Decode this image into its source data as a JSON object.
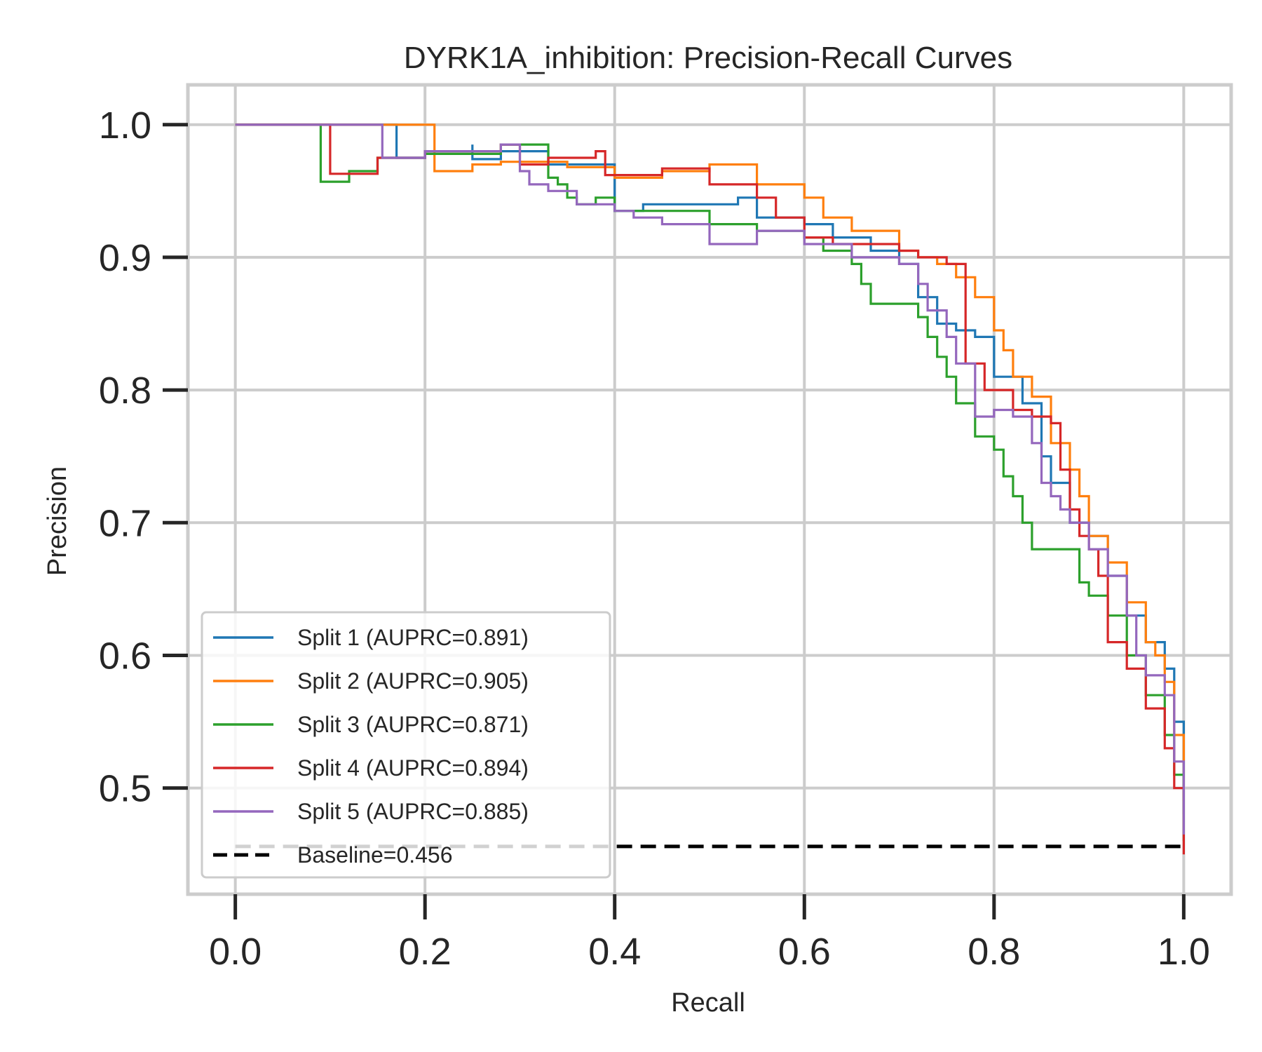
{
  "chart_data": {
    "type": "line",
    "title": "DYRK1A_inhibition: Precision-Recall Curves",
    "xlabel": "Recall",
    "ylabel": "Precision",
    "xlim": [
      -0.05,
      1.05
    ],
    "ylim": [
      0.42,
      1.03
    ],
    "xticks": [
      0.0,
      0.2,
      0.4,
      0.6,
      0.8,
      1.0
    ],
    "xtick_labels": [
      "0.0",
      "0.2",
      "0.4",
      "0.6",
      "0.8",
      "1.0"
    ],
    "yticks": [
      0.5,
      0.6,
      0.7,
      0.8,
      0.9,
      1.0
    ],
    "ytick_labels": [
      "0.5",
      "0.6",
      "0.7",
      "0.8",
      "0.9",
      "1.0"
    ],
    "grid": true,
    "legend_position": "lower-left",
    "series": [
      {
        "name": "Split 1 (AUPRC=0.891)",
        "color": "#1f77b4",
        "x": [
          0.0,
          0.17,
          0.17,
          0.2,
          0.25,
          0.25,
          0.28,
          0.33,
          0.39,
          0.4,
          0.4,
          0.43,
          0.5,
          0.53,
          0.55,
          0.6,
          0.63,
          0.67,
          0.7,
          0.72,
          0.74,
          0.76,
          0.78,
          0.8,
          0.83,
          0.85,
          0.86,
          0.88,
          0.9,
          0.92,
          0.94,
          0.96,
          0.98,
          0.99,
          1.0
        ],
        "y": [
          1.0,
          1.0,
          0.975,
          0.98,
          0.985,
          0.974,
          0.98,
          0.97,
          0.97,
          0.96,
          0.935,
          0.94,
          0.94,
          0.945,
          0.93,
          0.925,
          0.915,
          0.905,
          0.895,
          0.87,
          0.85,
          0.845,
          0.84,
          0.81,
          0.79,
          0.75,
          0.73,
          0.7,
          0.69,
          0.66,
          0.63,
          0.61,
          0.59,
          0.55,
          0.48
        ]
      },
      {
        "name": "Split 2 (AUPRC=0.905)",
        "color": "#ff7f0e",
        "x": [
          0.0,
          0.21,
          0.21,
          0.25,
          0.28,
          0.35,
          0.4,
          0.45,
          0.5,
          0.55,
          0.6,
          0.62,
          0.65,
          0.7,
          0.72,
          0.74,
          0.76,
          0.78,
          0.8,
          0.81,
          0.82,
          0.84,
          0.86,
          0.88,
          0.89,
          0.9,
          0.92,
          0.94,
          0.96,
          0.97,
          0.98,
          0.99,
          1.0
        ],
        "y": [
          1.0,
          1.0,
          0.965,
          0.97,
          0.972,
          0.968,
          0.96,
          0.965,
          0.97,
          0.955,
          0.945,
          0.93,
          0.92,
          0.905,
          0.9,
          0.895,
          0.885,
          0.87,
          0.845,
          0.83,
          0.81,
          0.795,
          0.76,
          0.74,
          0.72,
          0.69,
          0.67,
          0.64,
          0.61,
          0.6,
          0.58,
          0.54,
          0.49
        ]
      },
      {
        "name": "Split 3 (AUPRC=0.871)",
        "color": "#2ca02c",
        "x": [
          0.0,
          0.09,
          0.09,
          0.12,
          0.15,
          0.2,
          0.28,
          0.33,
          0.33,
          0.34,
          0.35,
          0.36,
          0.38,
          0.4,
          0.45,
          0.5,
          0.55,
          0.6,
          0.62,
          0.65,
          0.66,
          0.67,
          0.7,
          0.72,
          0.73,
          0.74,
          0.75,
          0.76,
          0.78,
          0.8,
          0.81,
          0.82,
          0.83,
          0.84,
          0.85,
          0.88,
          0.89,
          0.9,
          0.92,
          0.94,
          0.96,
          0.98,
          0.99,
          1.0
        ],
        "y": [
          1.0,
          1.0,
          0.957,
          0.965,
          0.975,
          0.978,
          0.985,
          0.97,
          0.96,
          0.955,
          0.945,
          0.94,
          0.945,
          0.935,
          0.935,
          0.925,
          0.92,
          0.915,
          0.905,
          0.895,
          0.88,
          0.865,
          0.865,
          0.855,
          0.84,
          0.825,
          0.81,
          0.79,
          0.765,
          0.755,
          0.735,
          0.72,
          0.7,
          0.68,
          0.68,
          0.68,
          0.655,
          0.645,
          0.63,
          0.6,
          0.57,
          0.54,
          0.51,
          0.46
        ]
      },
      {
        "name": "Split 4 (AUPRC=0.894)",
        "color": "#d62728",
        "x": [
          0.0,
          0.1,
          0.1,
          0.15,
          0.2,
          0.28,
          0.3,
          0.33,
          0.38,
          0.39,
          0.45,
          0.5,
          0.55,
          0.57,
          0.6,
          0.63,
          0.65,
          0.7,
          0.72,
          0.75,
          0.77,
          0.77,
          0.79,
          0.8,
          0.82,
          0.84,
          0.86,
          0.87,
          0.88,
          0.89,
          0.9,
          0.91,
          0.92,
          0.94,
          0.96,
          0.98,
          0.99,
          1.0
        ],
        "y": [
          1.0,
          1.0,
          0.963,
          0.975,
          0.98,
          0.985,
          0.97,
          0.975,
          0.98,
          0.962,
          0.967,
          0.955,
          0.945,
          0.93,
          0.915,
          0.91,
          0.91,
          0.905,
          0.9,
          0.895,
          0.89,
          0.82,
          0.8,
          0.8,
          0.785,
          0.78,
          0.775,
          0.74,
          0.71,
          0.69,
          0.68,
          0.66,
          0.61,
          0.59,
          0.56,
          0.53,
          0.5,
          0.45
        ]
      },
      {
        "name": "Split 5 (AUPRC=0.885)",
        "color": "#9467bd",
        "x": [
          0.0,
          0.155,
          0.155,
          0.2,
          0.28,
          0.3,
          0.31,
          0.33,
          0.36,
          0.4,
          0.42,
          0.45,
          0.5,
          0.55,
          0.6,
          0.63,
          0.65,
          0.7,
          0.72,
          0.73,
          0.75,
          0.76,
          0.78,
          0.78,
          0.8,
          0.82,
          0.84,
          0.85,
          0.86,
          0.87,
          0.88,
          0.9,
          0.92,
          0.94,
          0.95,
          0.96,
          0.98,
          0.99,
          1.0
        ],
        "y": [
          1.0,
          1.0,
          0.975,
          0.98,
          0.985,
          0.965,
          0.955,
          0.95,
          0.94,
          0.935,
          0.93,
          0.925,
          0.91,
          0.92,
          0.91,
          0.91,
          0.9,
          0.895,
          0.88,
          0.86,
          0.84,
          0.82,
          0.8,
          0.78,
          0.785,
          0.78,
          0.76,
          0.73,
          0.72,
          0.71,
          0.7,
          0.68,
          0.66,
          0.63,
          0.6,
          0.585,
          0.57,
          0.52,
          0.465
        ]
      }
    ],
    "baseline": {
      "name": "Baseline=0.456",
      "value": 0.456,
      "color": "#000000",
      "style": "dashed"
    }
  }
}
